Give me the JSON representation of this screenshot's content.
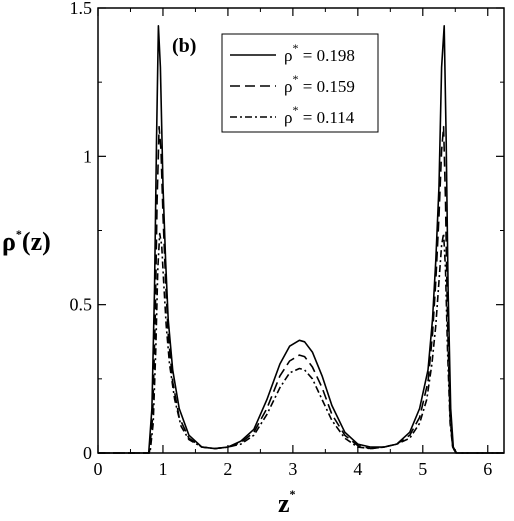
{
  "chart_data": {
    "type": "line",
    "panel_label": "(b)",
    "xlabel": "z",
    "xlabel_superscript": "*",
    "ylabel": "ρ",
    "ylabel_superscript": "*",
    "ylabel_suffix": "(z)",
    "xlim": [
      0,
      6.25
    ],
    "ylim": [
      0,
      1.5
    ],
    "x_ticks": [
      0,
      1,
      2,
      3,
      4,
      5,
      6
    ],
    "y_ticks": [
      0,
      0.5,
      1,
      1.5
    ],
    "x_tick_labels": [
      "0",
      "1",
      "2",
      "3",
      "4",
      "5",
      "6"
    ],
    "y_tick_labels": [
      "0",
      "0.5",
      "1",
      "1.5"
    ],
    "grid": false,
    "legend_position": "top-center",
    "series": [
      {
        "name": "ρ* = 0.198",
        "legend_symbol": "ρ",
        "legend_superscript": "*",
        "legend_value": " = 0.198",
        "style": "solid",
        "x": [
          0,
          0.78,
          0.83,
          0.87,
          0.9,
          0.93,
          0.96,
          1.0,
          1.04,
          1.08,
          1.15,
          1.25,
          1.4,
          1.6,
          1.8,
          2.0,
          2.2,
          2.4,
          2.6,
          2.8,
          2.95,
          3.1,
          3.18,
          3.3,
          3.45,
          3.6,
          3.8,
          4.0,
          4.2,
          4.4,
          4.6,
          4.8,
          4.95,
          5.08,
          5.15,
          5.2,
          5.25,
          5.29,
          5.33,
          5.36,
          5.39,
          5.43,
          5.47,
          5.52,
          6.25
        ],
        "y": [
          0,
          0,
          0.15,
          0.55,
          1.05,
          1.44,
          1.3,
          0.9,
          0.65,
          0.45,
          0.28,
          0.15,
          0.06,
          0.02,
          0.015,
          0.02,
          0.04,
          0.08,
          0.18,
          0.3,
          0.36,
          0.38,
          0.375,
          0.34,
          0.26,
          0.16,
          0.07,
          0.03,
          0.02,
          0.02,
          0.03,
          0.07,
          0.15,
          0.28,
          0.45,
          0.65,
          0.9,
          1.3,
          1.44,
          1.05,
          0.55,
          0.15,
          0.02,
          0,
          0
        ]
      },
      {
        "name": "ρ* = 0.159",
        "legend_symbol": "ρ",
        "legend_superscript": "*",
        "legend_value": " = 0.159",
        "style": "dashed",
        "x": [
          0,
          0.79,
          0.84,
          0.88,
          0.91,
          0.94,
          0.97,
          1.0,
          1.04,
          1.08,
          1.15,
          1.25,
          1.4,
          1.6,
          1.8,
          2.0,
          2.2,
          2.4,
          2.6,
          2.8,
          2.95,
          3.1,
          3.18,
          3.3,
          3.45,
          3.6,
          3.8,
          4.0,
          4.2,
          4.4,
          4.6,
          4.8,
          4.95,
          5.08,
          5.15,
          5.2,
          5.25,
          5.29,
          5.32,
          5.35,
          5.38,
          5.42,
          5.46,
          5.51,
          6.25
        ],
        "y": [
          0,
          0,
          0.12,
          0.45,
          0.85,
          1.1,
          1.02,
          0.8,
          0.58,
          0.4,
          0.24,
          0.12,
          0.05,
          0.02,
          0.015,
          0.02,
          0.035,
          0.07,
          0.15,
          0.26,
          0.31,
          0.33,
          0.325,
          0.29,
          0.22,
          0.13,
          0.06,
          0.025,
          0.015,
          0.02,
          0.03,
          0.06,
          0.12,
          0.24,
          0.4,
          0.58,
          0.8,
          1.02,
          1.1,
          0.85,
          0.45,
          0.12,
          0.02,
          0,
          0
        ]
      },
      {
        "name": "ρ* = 0.114",
        "legend_symbol": "ρ",
        "legend_superscript": "*",
        "legend_value": " = 0.114",
        "style": "dashdot",
        "x": [
          0,
          0.8,
          0.85,
          0.89,
          0.92,
          0.95,
          0.98,
          1.01,
          1.05,
          1.1,
          1.18,
          1.28,
          1.4,
          1.6,
          1.8,
          2.0,
          2.2,
          2.4,
          2.6,
          2.8,
          2.95,
          3.1,
          3.18,
          3.3,
          3.45,
          3.6,
          3.8,
          4.0,
          4.2,
          4.4,
          4.6,
          4.8,
          4.95,
          5.06,
          5.14,
          5.2,
          5.25,
          5.29,
          5.32,
          5.35,
          5.38,
          5.42,
          5.46,
          5.51,
          6.25
        ],
        "y": [
          0,
          0,
          0.1,
          0.35,
          0.62,
          0.74,
          0.7,
          0.58,
          0.43,
          0.3,
          0.18,
          0.09,
          0.045,
          0.02,
          0.015,
          0.02,
          0.03,
          0.06,
          0.13,
          0.22,
          0.27,
          0.285,
          0.28,
          0.25,
          0.18,
          0.11,
          0.05,
          0.02,
          0.015,
          0.02,
          0.03,
          0.05,
          0.1,
          0.18,
          0.3,
          0.43,
          0.58,
          0.7,
          0.74,
          0.62,
          0.35,
          0.1,
          0.02,
          0,
          0
        ]
      }
    ]
  }
}
